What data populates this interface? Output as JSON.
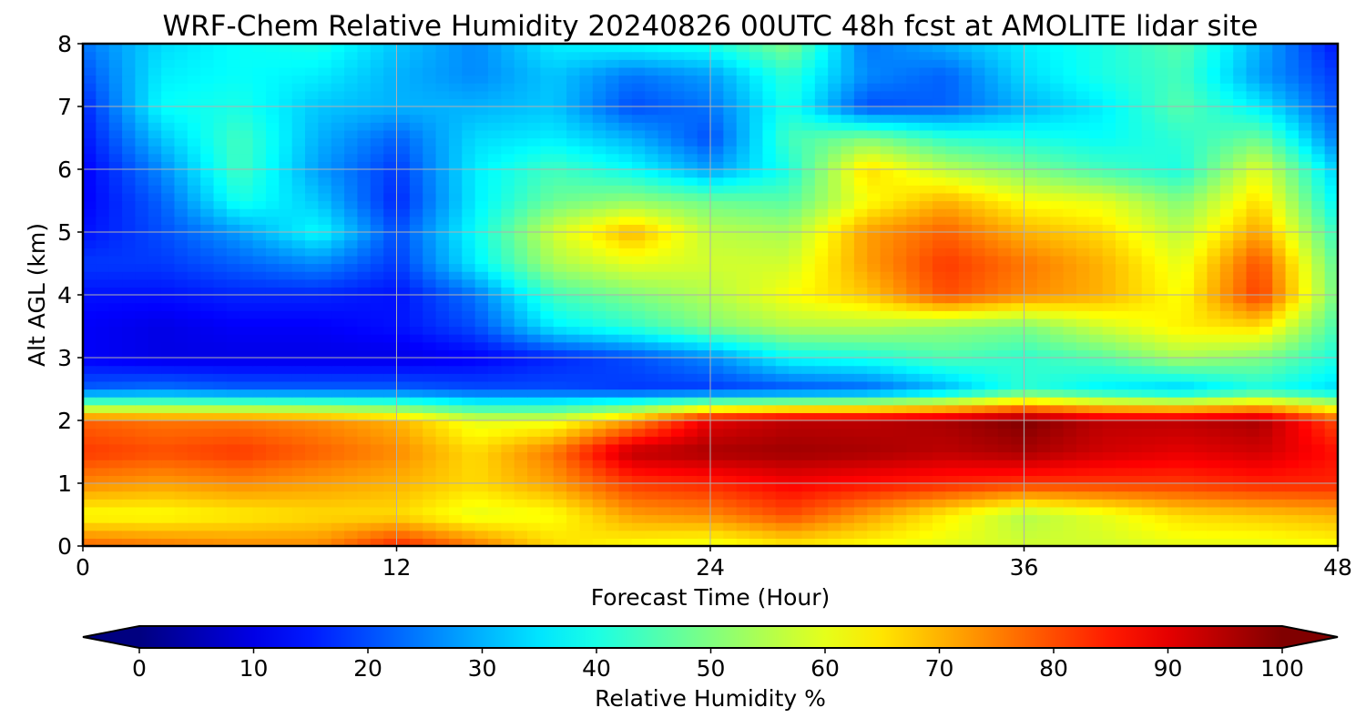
{
  "chart_data": {
    "type": "heatmap",
    "title": "WRF-Chem Relative Humidity 20240826 00UTC 48h fcst at AMOLITE lidar site",
    "xlabel": "Forecast Time (Hour)",
    "ylabel": "Alt AGL (km)",
    "xlim": [
      0,
      48
    ],
    "ylim": [
      0,
      8
    ],
    "x_ticks": [
      0,
      12,
      24,
      36,
      48
    ],
    "y_ticks": [
      0,
      1,
      2,
      3,
      4,
      5,
      6,
      7,
      8
    ],
    "grid": true,
    "colormap": "jet",
    "colorbar": {
      "label": "Relative Humidity %",
      "range": [
        0,
        100
      ],
      "ticks": [
        0,
        10,
        20,
        30,
        40,
        50,
        60,
        70,
        80,
        90,
        100
      ],
      "extend": "both",
      "orientation": "horizontal"
    },
    "x": [
      0,
      3,
      6,
      9,
      12,
      15,
      18,
      21,
      24,
      27,
      30,
      33,
      36,
      39,
      42,
      45,
      48
    ],
    "y": [
      0,
      0.5,
      1,
      1.5,
      2,
      2.5,
      3,
      3.5,
      4,
      4.5,
      5,
      5.5,
      6,
      6.5,
      7,
      7.5,
      8
    ],
    "z": [
      [
        78,
        76,
        74,
        74,
        84,
        76,
        66,
        62,
        60,
        64,
        62,
        60,
        58,
        58,
        60,
        60,
        62
      ],
      [
        62,
        62,
        64,
        66,
        66,
        60,
        62,
        72,
        74,
        80,
        72,
        64,
        55,
        60,
        66,
        68,
        70
      ],
      [
        74,
        72,
        74,
        72,
        70,
        66,
        72,
        82,
        84,
        88,
        86,
        84,
        82,
        82,
        82,
        84,
        84
      ],
      [
        82,
        80,
        82,
        78,
        74,
        66,
        76,
        94,
        96,
        97,
        96,
        94,
        96,
        92,
        90,
        92,
        86
      ],
      [
        78,
        76,
        76,
        74,
        70,
        60,
        60,
        72,
        90,
        94,
        94,
        96,
        100,
        94,
        94,
        96,
        80
      ],
      [
        22,
        24,
        22,
        22,
        22,
        20,
        20,
        18,
        18,
        20,
        22,
        30,
        42,
        36,
        32,
        40,
        34
      ],
      [
        12,
        10,
        10,
        10,
        10,
        12,
        16,
        20,
        26,
        38,
        40,
        45,
        42,
        46,
        54,
        50,
        40
      ],
      [
        12,
        10,
        12,
        12,
        14,
        20,
        36,
        42,
        50,
        55,
        55,
        52,
        50,
        58,
        64,
        66,
        44
      ],
      [
        14,
        14,
        16,
        16,
        14,
        24,
        44,
        50,
        55,
        62,
        68,
        80,
        74,
        70,
        62,
        82,
        48
      ],
      [
        18,
        18,
        22,
        26,
        18,
        36,
        54,
        60,
        58,
        58,
        72,
        82,
        76,
        70,
        60,
        80,
        46
      ],
      [
        14,
        20,
        28,
        38,
        20,
        38,
        58,
        70,
        56,
        54,
        72,
        78,
        70,
        66,
        56,
        72,
        42
      ],
      [
        12,
        22,
        40,
        32,
        16,
        36,
        48,
        52,
        48,
        46,
        62,
        70,
        62,
        60,
        50,
        66,
        36
      ],
      [
        12,
        26,
        44,
        28,
        18,
        36,
        44,
        38,
        28,
        40,
        66,
        56,
        50,
        44,
        40,
        60,
        32
      ],
      [
        14,
        32,
        44,
        30,
        22,
        34,
        36,
        30,
        20,
        44,
        50,
        42,
        40,
        38,
        42,
        48,
        24
      ],
      [
        16,
        38,
        40,
        32,
        30,
        30,
        32,
        20,
        24,
        40,
        20,
        22,
        30,
        36,
        46,
        36,
        20
      ],
      [
        20,
        36,
        38,
        36,
        30,
        26,
        32,
        24,
        28,
        42,
        26,
        22,
        34,
        40,
        44,
        28,
        18
      ],
      [
        24,
        34,
        38,
        40,
        32,
        26,
        36,
        38,
        40,
        50,
        24,
        30,
        36,
        40,
        46,
        30,
        14
      ]
    ]
  }
}
